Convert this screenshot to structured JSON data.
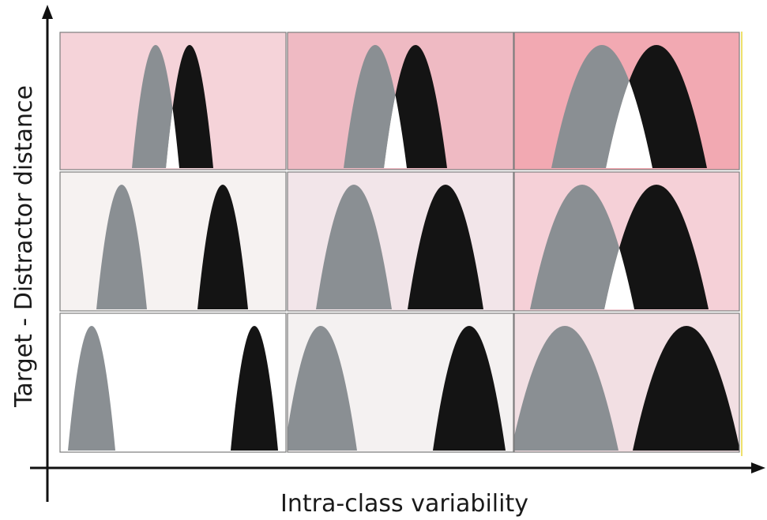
{
  "axes": {
    "x_label": "Intra-class variability",
    "y_label": "Target - Distractor distance"
  },
  "colors": {
    "distractor": "#8a8f93",
    "target": "#141414",
    "overlap": "#ffffff",
    "axis": "#111111",
    "grid_border": "#7d7d7d",
    "right_edge": "#e8d63a"
  },
  "grid": {
    "rows": 3,
    "cols": 3,
    "backgrounds": [
      [
        "#f5d3d9",
        "#efbac3",
        "#f2a9b2"
      ],
      [
        "#f6f2f1",
        "#f2e5e9",
        "#f5d0d7"
      ],
      [
        "#ffffff",
        "#f4f1f1",
        "#f2dfe3"
      ]
    ]
  }
}
